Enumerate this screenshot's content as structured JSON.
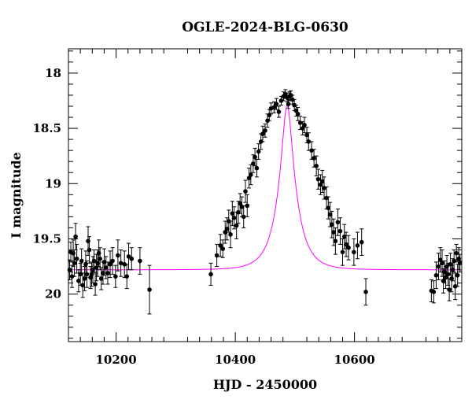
{
  "chart_data": {
    "type": "scatter",
    "title": "OGLE-2024-BLG-0630",
    "xlabel": "HJD - 2450000",
    "ylabel": "I magnitude",
    "xlim": [
      10120,
      10780
    ],
    "ylim": [
      20.43,
      17.78
    ],
    "y_inverted": true,
    "x_ticks": [
      10200,
      10400,
      10600
    ],
    "y_ticks": [
      18,
      18.5,
      19,
      19.5,
      20
    ],
    "x_tick_labels": [
      "10200",
      "10400",
      "10600"
    ],
    "y_tick_labels": [
      "18",
      "18.5",
      "19",
      "19.5",
      "20"
    ],
    "model": {
      "color": "#ff00ff",
      "t0": 10487,
      "tE": 30,
      "u0": 0.26,
      "baseline": 19.78
    },
    "series": [
      {
        "color": "#000000",
        "points": [
          {
            "x": 10122,
            "y": 19.78,
            "err": 0.09
          },
          {
            "x": 10124,
            "y": 19.62,
            "err": 0.09
          },
          {
            "x": 10126,
            "y": 19.84,
            "err": 0.1
          },
          {
            "x": 10128,
            "y": 19.63,
            "err": 0.12
          },
          {
            "x": 10130,
            "y": 19.72,
            "err": 0.12
          },
          {
            "x": 10132,
            "y": 19.48,
            "err": 0.12
          },
          {
            "x": 10134,
            "y": 19.68,
            "err": 0.13
          },
          {
            "x": 10137,
            "y": 19.88,
            "err": 0.1
          },
          {
            "x": 10140,
            "y": 19.82,
            "err": 0.1
          },
          {
            "x": 10142,
            "y": 19.7,
            "err": 0.11
          },
          {
            "x": 10144,
            "y": 19.92,
            "err": 0.11
          },
          {
            "x": 10147,
            "y": 19.86,
            "err": 0.11
          },
          {
            "x": 10149,
            "y": 19.73,
            "err": 0.12
          },
          {
            "x": 10151,
            "y": 19.82,
            "err": 0.12
          },
          {
            "x": 10153,
            "y": 19.52,
            "err": 0.13
          },
          {
            "x": 10155,
            "y": 19.6,
            "err": 0.12
          },
          {
            "x": 10157,
            "y": 19.85,
            "err": 0.1
          },
          {
            "x": 10159,
            "y": 19.82,
            "err": 0.11
          },
          {
            "x": 10161,
            "y": 19.78,
            "err": 0.12
          },
          {
            "x": 10163,
            "y": 19.7,
            "err": 0.1
          },
          {
            "x": 10165,
            "y": 19.91,
            "err": 0.1
          },
          {
            "x": 10167,
            "y": 19.76,
            "err": 0.12
          },
          {
            "x": 10169,
            "y": 19.72,
            "err": 0.12
          },
          {
            "x": 10171,
            "y": 19.63,
            "err": 0.12
          },
          {
            "x": 10173,
            "y": 19.68,
            "err": 0.1
          },
          {
            "x": 10175,
            "y": 19.86,
            "err": 0.1
          },
          {
            "x": 10178,
            "y": 19.81,
            "err": 0.1
          },
          {
            "x": 10180,
            "y": 19.71,
            "err": 0.12
          },
          {
            "x": 10183,
            "y": 19.76,
            "err": 0.1
          },
          {
            "x": 10186,
            "y": 19.81,
            "err": 0.1
          },
          {
            "x": 10190,
            "y": 19.73,
            "err": 0.12
          },
          {
            "x": 10194,
            "y": 19.7,
            "err": 0.12
          },
          {
            "x": 10199,
            "y": 19.84,
            "err": 0.1
          },
          {
            "x": 10203,
            "y": 19.65,
            "err": 0.14
          },
          {
            "x": 10208,
            "y": 19.72,
            "err": 0.12
          },
          {
            "x": 10214,
            "y": 19.73,
            "err": 0.12
          },
          {
            "x": 10218,
            "y": 19.84,
            "err": 0.11
          },
          {
            "x": 10221,
            "y": 19.66,
            "err": 0.12
          },
          {
            "x": 10226,
            "y": 19.68,
            "err": 0.1
          },
          {
            "x": 10240,
            "y": 19.7,
            "err": 0.12
          },
          {
            "x": 10256,
            "y": 19.96,
            "err": 0.22
          },
          {
            "x": 10359,
            "y": 19.82,
            "err": 0.1
          },
          {
            "x": 10369,
            "y": 19.65,
            "err": 0.1
          },
          {
            "x": 10375,
            "y": 19.56,
            "err": 0.1
          },
          {
            "x": 10379,
            "y": 19.59,
            "err": 0.08
          },
          {
            "x": 10383,
            "y": 19.44,
            "err": 0.1
          },
          {
            "x": 10386,
            "y": 19.41,
            "err": 0.1
          },
          {
            "x": 10389,
            "y": 19.34,
            "err": 0.1
          },
          {
            "x": 10392,
            "y": 19.46,
            "err": 0.12
          },
          {
            "x": 10395,
            "y": 19.27,
            "err": 0.11
          },
          {
            "x": 10398,
            "y": 19.31,
            "err": 0.1
          },
          {
            "x": 10402,
            "y": 19.38,
            "err": 0.12
          },
          {
            "x": 10405,
            "y": 19.26,
            "err": 0.1
          },
          {
            "x": 10408,
            "y": 19.18,
            "err": 0.09
          },
          {
            "x": 10411,
            "y": 19.21,
            "err": 0.09
          },
          {
            "x": 10414,
            "y": 19.3,
            "err": 0.1
          },
          {
            "x": 10417,
            "y": 19.07,
            "err": 0.1
          },
          {
            "x": 10420,
            "y": 19.2,
            "err": 0.1
          },
          {
            "x": 10423,
            "y": 18.95,
            "err": 0.09
          },
          {
            "x": 10426,
            "y": 18.92,
            "err": 0.09
          },
          {
            "x": 10430,
            "y": 18.82,
            "err": 0.08
          },
          {
            "x": 10433,
            "y": 18.76,
            "err": 0.08
          },
          {
            "x": 10436,
            "y": 18.86,
            "err": 0.08
          },
          {
            "x": 10439,
            "y": 18.71,
            "err": 0.07
          },
          {
            "x": 10443,
            "y": 18.62,
            "err": 0.07
          },
          {
            "x": 10446,
            "y": 18.55,
            "err": 0.07
          },
          {
            "x": 10450,
            "y": 18.52,
            "err": 0.06
          },
          {
            "x": 10454,
            "y": 18.43,
            "err": 0.06
          },
          {
            "x": 10457,
            "y": 18.38,
            "err": 0.05
          },
          {
            "x": 10460,
            "y": 18.32,
            "err": 0.05
          },
          {
            "x": 10465,
            "y": 18.31,
            "err": 0.05
          },
          {
            "x": 10469,
            "y": 18.28,
            "err": 0.05
          },
          {
            "x": 10473,
            "y": 18.35,
            "err": 0.05
          },
          {
            "x": 10477,
            "y": 18.25,
            "err": 0.04
          },
          {
            "x": 10481,
            "y": 18.21,
            "err": 0.04
          },
          {
            "x": 10484,
            "y": 18.19,
            "err": 0.04
          },
          {
            "x": 10487,
            "y": 18.22,
            "err": 0.04
          },
          {
            "x": 10489,
            "y": 18.28,
            "err": 0.04
          },
          {
            "x": 10491,
            "y": 18.21,
            "err": 0.04
          },
          {
            "x": 10493,
            "y": 18.2,
            "err": 0.04
          },
          {
            "x": 10496,
            "y": 18.24,
            "err": 0.04
          },
          {
            "x": 10499,
            "y": 18.29,
            "err": 0.05
          },
          {
            "x": 10502,
            "y": 18.34,
            "err": 0.05
          },
          {
            "x": 10505,
            "y": 18.37,
            "err": 0.06
          },
          {
            "x": 10509,
            "y": 18.45,
            "err": 0.06
          },
          {
            "x": 10513,
            "y": 18.5,
            "err": 0.06
          },
          {
            "x": 10516,
            "y": 18.47,
            "err": 0.07
          },
          {
            "x": 10520,
            "y": 18.56,
            "err": 0.07
          },
          {
            "x": 10523,
            "y": 18.62,
            "err": 0.08
          },
          {
            "x": 10528,
            "y": 18.7,
            "err": 0.08
          },
          {
            "x": 10532,
            "y": 18.77,
            "err": 0.08
          },
          {
            "x": 10536,
            "y": 18.84,
            "err": 0.09
          },
          {
            "x": 10539,
            "y": 18.96,
            "err": 0.09
          },
          {
            "x": 10543,
            "y": 19.01,
            "err": 0.09
          },
          {
            "x": 10546,
            "y": 18.98,
            "err": 0.1
          },
          {
            "x": 10549,
            "y": 19.04,
            "err": 0.1
          },
          {
            "x": 10553,
            "y": 19.13,
            "err": 0.1
          },
          {
            "x": 10556,
            "y": 19.22,
            "err": 0.1
          },
          {
            "x": 10559,
            "y": 19.28,
            "err": 0.11
          },
          {
            "x": 10562,
            "y": 19.37,
            "err": 0.12
          },
          {
            "x": 10565,
            "y": 19.44,
            "err": 0.12
          },
          {
            "x": 10568,
            "y": 19.52,
            "err": 0.12
          },
          {
            "x": 10572,
            "y": 19.35,
            "err": 0.12
          },
          {
            "x": 10576,
            "y": 19.43,
            "err": 0.12
          },
          {
            "x": 10580,
            "y": 19.62,
            "err": 0.12
          },
          {
            "x": 10583,
            "y": 19.48,
            "err": 0.11
          },
          {
            "x": 10586,
            "y": 19.55,
            "err": 0.11
          },
          {
            "x": 10590,
            "y": 19.58,
            "err": 0.11
          },
          {
            "x": 10599,
            "y": 19.62,
            "err": 0.12
          },
          {
            "x": 10605,
            "y": 19.56,
            "err": 0.12
          },
          {
            "x": 10612,
            "y": 19.53,
            "err": 0.12
          },
          {
            "x": 10619,
            "y": 19.98,
            "err": 0.12
          },
          {
            "x": 10729,
            "y": 19.97,
            "err": 0.1
          },
          {
            "x": 10733,
            "y": 19.98,
            "err": 0.1
          },
          {
            "x": 10737,
            "y": 19.83,
            "err": 0.12
          },
          {
            "x": 10741,
            "y": 19.75,
            "err": 0.12
          },
          {
            "x": 10744,
            "y": 19.69,
            "err": 0.11
          },
          {
            "x": 10747,
            "y": 19.72,
            "err": 0.12
          },
          {
            "x": 10749,
            "y": 19.88,
            "err": 0.11
          },
          {
            "x": 10751,
            "y": 19.8,
            "err": 0.1
          },
          {
            "x": 10753,
            "y": 19.85,
            "err": 0.1
          },
          {
            "x": 10755,
            "y": 19.75,
            "err": 0.1
          },
          {
            "x": 10757,
            "y": 19.82,
            "err": 0.1
          },
          {
            "x": 10759,
            "y": 19.96,
            "err": 0.1
          },
          {
            "x": 10761,
            "y": 19.73,
            "err": 0.1
          },
          {
            "x": 10763,
            "y": 19.86,
            "err": 0.12
          },
          {
            "x": 10765,
            "y": 19.78,
            "err": 0.1
          },
          {
            "x": 10767,
            "y": 19.7,
            "err": 0.1
          },
          {
            "x": 10769,
            "y": 19.93,
            "err": 0.12
          },
          {
            "x": 10771,
            "y": 19.63,
            "err": 0.08
          },
          {
            "x": 10773,
            "y": 19.83,
            "err": 0.1
          },
          {
            "x": 10775,
            "y": 19.68,
            "err": 0.1
          },
          {
            "x": 10777,
            "y": 19.72,
            "err": 0.08
          }
        ]
      }
    ]
  }
}
